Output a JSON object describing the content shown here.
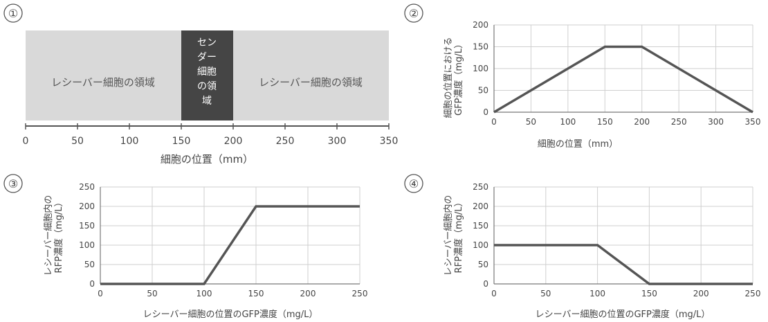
{
  "panel_numbers": [
    "①",
    "②",
    "③",
    "④"
  ],
  "diagram": {
    "left_region": "レシーバー細胞の領域",
    "center_region_lines": [
      "セン",
      "ダー",
      "細胞",
      "の領",
      "域"
    ],
    "right_region": "レシーバー細胞の領域",
    "ticks": [
      "0",
      "50",
      "100",
      "150",
      "200",
      "250",
      "300",
      "350"
    ],
    "xlabel": "細胞の位置（mm）",
    "colors": {
      "receiver": "#d9d9d9",
      "sender": "#454545",
      "sender_text": "#ffffff"
    }
  },
  "chart_data": [
    {
      "type": "line",
      "xlabel": "細胞の位置（mm）",
      "ylabel_lines": [
        "細胞の位置における",
        "GFP濃度（mg/L）"
      ],
      "x": [
        0,
        150,
        200,
        350
      ],
      "y": [
        0,
        150,
        150,
        0
      ],
      "xticks": [
        0,
        50,
        100,
        150,
        200,
        250,
        300,
        350
      ],
      "yticks": [
        0,
        50,
        100,
        150,
        200
      ],
      "xlim": [
        0,
        350
      ],
      "ylim": [
        0,
        200
      ],
      "grid": true,
      "line_color": "#555555"
    },
    {
      "type": "line",
      "xlabel": "レシーバー細胞の位置のGFP濃度（mg/L）",
      "ylabel_lines": [
        "レシーバー細胞内の",
        "RFP濃度（mg/L）"
      ],
      "x": [
        0,
        100,
        150,
        250
      ],
      "y": [
        0,
        0,
        200,
        200
      ],
      "xticks": [
        0,
        50,
        100,
        150,
        200,
        250
      ],
      "yticks": [
        0,
        50,
        100,
        150,
        200,
        250
      ],
      "xlim": [
        0,
        250
      ],
      "ylim": [
        0,
        250
      ],
      "grid": true,
      "line_color": "#555555"
    },
    {
      "type": "line",
      "xlabel": "レシーバー細胞の位置のGFP濃度（mg/L）",
      "ylabel_lines": [
        "レシーバー細胞内の",
        "RFP濃度（mg/L）"
      ],
      "x": [
        0,
        100,
        150,
        250
      ],
      "y": [
        100,
        100,
        0,
        0
      ],
      "xticks": [
        0,
        50,
        100,
        150,
        200,
        250
      ],
      "yticks": [
        0,
        50,
        100,
        150,
        200,
        250
      ],
      "xlim": [
        0,
        250
      ],
      "ylim": [
        0,
        250
      ],
      "grid": true,
      "line_color": "#555555"
    }
  ]
}
